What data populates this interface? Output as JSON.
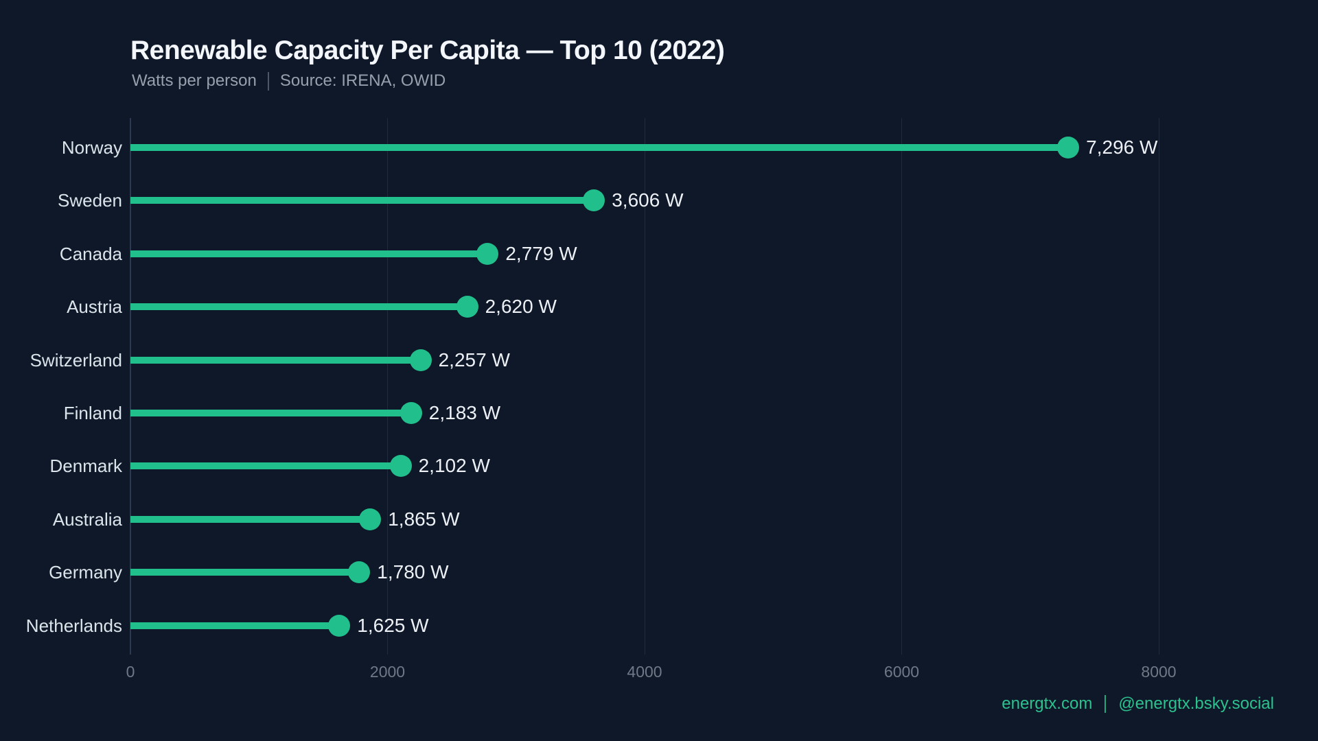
{
  "chart": {
    "title": "Renewable Capacity Per Capita — Top 10 (2022)",
    "subtitle": "Watts per person",
    "source": "Source: IRENA, OWID",
    "footer": {
      "site": "energtx.com",
      "handle": "@energtx.bsky.social"
    }
  },
  "chart_data": {
    "type": "bar",
    "style": "lollipop",
    "orientation": "horizontal",
    "title": "Renewable Capacity Per Capita — Top 10 (2022)",
    "subtitle": "Watts per person",
    "source": "Source: IRENA, OWID",
    "categories": [
      "Norway",
      "Sweden",
      "Canada",
      "Austria",
      "Switzerland",
      "Finland",
      "Denmark",
      "Australia",
      "Germany",
      "Netherlands"
    ],
    "values": [
      7296,
      3606,
      2779,
      2620,
      2257,
      2183,
      2102,
      1865,
      1780,
      1625
    ],
    "unit": "W",
    "xlabel": "",
    "ylabel": "",
    "xlim": [
      0,
      8000
    ],
    "xticks": [
      0,
      2000,
      4000,
      6000,
      8000
    ],
    "grid": "vertical-faint",
    "legend": "none",
    "colors": {
      "background": "#0f1828",
      "accent": "#21bf8b",
      "title_text": "#f3f6fa",
      "subtitle_text": "#96a1ae",
      "category_text": "#dbe3eb",
      "value_text": "#edf1f6",
      "tick_text": "#6e7987",
      "footer_text": "#2cc18f"
    }
  }
}
